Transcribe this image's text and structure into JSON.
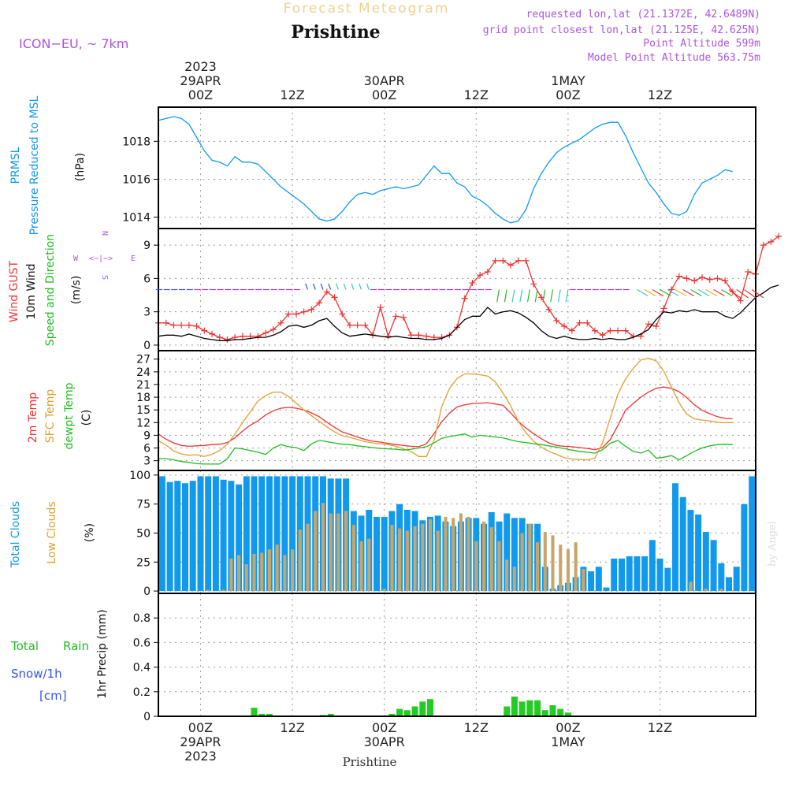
{
  "header": {
    "top_title": "Forecast Meteogram",
    "station": "Prishtine",
    "model": "ICON−EU, ~ 7km",
    "info_lines": [
      "requested lon,lat (21.1372E, 42.6489N)",
      "grid point closest lon,lat (21.125E, 42.625N)",
      "Point Altitude 599m",
      "Model Point Altitude 563.75m"
    ]
  },
  "time_axis": {
    "top_labels": [
      {
        "h": 0,
        "lines": [
          "2023",
          "29APR",
          "00Z"
        ]
      },
      {
        "h": 12,
        "lines": [
          "12Z"
        ]
      },
      {
        "h": 24,
        "lines": [
          "30APR",
          "00Z"
        ]
      },
      {
        "h": 36,
        "lines": [
          "12Z"
        ]
      },
      {
        "h": 48,
        "lines": [
          "1MAY",
          "00Z"
        ]
      },
      {
        "h": 60,
        "lines": [
          "12Z"
        ]
      }
    ],
    "bottom_labels": [
      {
        "h": 0,
        "lines": [
          "00Z",
          "29APR",
          "2023"
        ]
      },
      {
        "h": 12,
        "lines": [
          "12Z"
        ]
      },
      {
        "h": 24,
        "lines": [
          "00Z",
          "30APR"
        ]
      },
      {
        "h": 36,
        "lines": [
          "12Z"
        ]
      },
      {
        "h": 48,
        "lines": [
          "00Z",
          "1MAY"
        ]
      },
      {
        "h": 60,
        "lines": [
          "12Z"
        ]
      }
    ],
    "footer": "Prishtine"
  },
  "watermark": "by Angel",
  "chart_data": [
    {
      "type": "line",
      "panel": "pressure",
      "ylabel_lines": [
        "PRMSL",
        "Pressure Reduced to MSL"
      ],
      "unit": "(hPa)",
      "ylim": [
        1013.4,
        1019.8
      ],
      "yticks": [
        1014,
        1016,
        1018
      ],
      "x_start": -5.5,
      "x_step": 1,
      "series": [
        {
          "color": "#1199ee",
          "values": [
            1019.1,
            1019.2,
            1019.3,
            1019.2,
            1018.9,
            1018.2,
            1017.5,
            1017.0,
            1016.9,
            1016.7,
            1017.2,
            1016.9,
            1016.9,
            1016.8,
            1016.4,
            1016.0,
            1015.6,
            1015.3,
            1015.0,
            1014.7,
            1014.3,
            1013.9,
            1013.8,
            1013.9,
            1014.3,
            1014.8,
            1015.2,
            1015.3,
            1015.2,
            1015.4,
            1015.5,
            1015.6,
            1015.5,
            1015.6,
            1015.7,
            1016.2,
            1016.7,
            1016.3,
            1016.3,
            1015.8,
            1015.6,
            1015.1,
            1014.9,
            1014.6,
            1014.2,
            1013.9,
            1013.7,
            1013.8,
            1014.4,
            1015.5,
            1016.3,
            1016.9,
            1017.4,
            1017.7,
            1017.9,
            1018.1,
            1018.4,
            1018.7,
            1018.9,
            1019.0,
            1019.0,
            1018.3,
            1017.4,
            1016.6,
            1015.8,
            1015.3,
            1014.7,
            1014.2,
            1014.1,
            1014.3,
            1015.2,
            1015.8,
            1016.0,
            1016.2,
            1016.5,
            1016.4
          ]
        }
      ]
    },
    {
      "type": "line",
      "panel": "wind",
      "ylabel_lines": [
        "Wind GUST",
        "10m Wind",
        "Speed and Direction"
      ],
      "ylabel_colors": [
        "#ee3333",
        "#000000",
        "#22bb22"
      ],
      "unit": "(m/s)",
      "compass": {
        "n": "N",
        "s": "S",
        "w": "W",
        "e": "E",
        "cross": "<−|−>"
      },
      "ylim": [
        -0.5,
        10.5
      ],
      "yticks": [
        0,
        3,
        6,
        9
      ],
      "x_start": -5.5,
      "x_step": 1,
      "series": [
        {
          "name": "Wind GUST",
          "color": "#ee3333",
          "marker": "+",
          "values": [
            2.0,
            2.0,
            1.8,
            1.8,
            1.8,
            1.7,
            1.3,
            1.0,
            0.7,
            0.5,
            0.7,
            0.8,
            0.8,
            0.8,
            1.1,
            1.4,
            2.0,
            2.8,
            2.8,
            3.0,
            3.2,
            3.8,
            4.8,
            4.3,
            2.8,
            1.8,
            1.8,
            1.8,
            0.9,
            3.4,
            0.8,
            2.6,
            2.5,
            0.9,
            0.9,
            0.8,
            0.7,
            0.7,
            0.9,
            1.6,
            4.2,
            5.6,
            6.3,
            6.6,
            7.6,
            7.6,
            7.2,
            7.6,
            7.6,
            5.5,
            4.3,
            3.2,
            2.2,
            1.7,
            1.3,
            2.0,
            2.0,
            1.3,
            0.9,
            1.3,
            1.3,
            1.3,
            0.8,
            0.8,
            1.9,
            1.7,
            3.3,
            5.0,
            6.2,
            6.0,
            5.8,
            6.1,
            5.9,
            6.0,
            5.8,
            4.8,
            4.0,
            6.6,
            6.4,
            9.0,
            9.3,
            9.8
          ]
        },
        {
          "name": "10m Wind",
          "color": "#000000",
          "values": [
            0.8,
            0.9,
            0.9,
            0.8,
            1.0,
            0.8,
            0.6,
            0.5,
            0.4,
            0.4,
            0.5,
            0.5,
            0.6,
            0.7,
            0.7,
            0.9,
            1.2,
            1.7,
            1.8,
            1.6,
            1.8,
            2.2,
            2.4,
            1.7,
            1.1,
            0.8,
            0.9,
            1.0,
            0.9,
            0.8,
            0.7,
            0.8,
            0.7,
            0.6,
            0.6,
            0.5,
            0.5,
            0.6,
            0.9,
            1.6,
            2.3,
            2.6,
            2.6,
            3.4,
            2.8,
            3.0,
            3.1,
            2.9,
            2.5,
            2.0,
            1.3,
            0.8,
            0.6,
            0.8,
            0.6,
            0.5,
            0.5,
            0.6,
            0.5,
            0.6,
            0.5,
            0.5,
            0.7,
            1.0,
            1.4,
            2.3,
            3.0,
            2.9,
            3.1,
            3.0,
            3.2,
            3.0,
            3.0,
            3.0,
            2.6,
            2.4,
            2.9,
            3.6,
            4.3,
            4.7,
            5.2,
            5.4
          ]
        }
      ]
    },
    {
      "type": "line",
      "panel": "temperature",
      "ylabel_lines": [
        "2m Temp",
        "SFC Temp",
        "dewpt Temp"
      ],
      "ylabel_colors": [
        "#ee3333",
        "#e0a030",
        "#22bb22"
      ],
      "unit": "(C)",
      "ylim": [
        0.7,
        29.0
      ],
      "yticks": [
        3,
        6,
        9,
        12,
        15,
        18,
        21,
        24,
        27
      ],
      "x_start": -5.5,
      "x_step": 1,
      "series": [
        {
          "name": "2m Temp",
          "color": "#ee3333",
          "values": [
            9.3,
            8.1,
            7.2,
            6.6,
            6.4,
            6.5,
            6.6,
            6.8,
            6.9,
            7.3,
            8.4,
            10.0,
            11.4,
            12.4,
            13.8,
            14.8,
            15.4,
            15.6,
            15.4,
            15.0,
            14.3,
            13.4,
            12.1,
            10.9,
            9.8,
            9.2,
            8.6,
            8.0,
            7.6,
            7.4,
            7.1,
            6.8,
            6.6,
            6.4,
            6.3,
            7.0,
            9.4,
            12.2,
            14.2,
            15.7,
            16.2,
            16.5,
            16.6,
            16.7,
            16.4,
            16.1,
            14.3,
            12.3,
            10.7,
            9.4,
            8.2,
            7.2,
            6.6,
            6.4,
            6.3,
            6.1,
            5.9,
            5.6,
            6.1,
            8.0,
            11.3,
            14.9,
            16.5,
            18.0,
            19.2,
            20.1,
            20.4,
            20.1,
            19.3,
            17.9,
            16.2,
            14.9,
            14.1,
            13.4,
            13.0,
            12.9
          ]
        },
        {
          "name": "SFC Temp",
          "color": "#e0a030",
          "values": [
            7.7,
            6.7,
            5.3,
            4.6,
            4.3,
            4.4,
            4.0,
            4.5,
            5.4,
            6.9,
            9.3,
            12.0,
            14.5,
            17.1,
            18.4,
            19.2,
            19.2,
            18.2,
            16.6,
            15.0,
            13.6,
            12.3,
            11.0,
            9.8,
            8.9,
            8.5,
            8.0,
            7.5,
            7.2,
            7.0,
            6.8,
            6.4,
            5.8,
            5.2,
            4.0,
            4.0,
            7.8,
            15.8,
            20.0,
            22.4,
            23.5,
            23.5,
            23.3,
            23.0,
            21.6,
            19.0,
            16.0,
            12.3,
            9.6,
            7.6,
            6.2,
            5.2,
            4.5,
            3.7,
            3.4,
            3.3,
            3.2,
            3.6,
            7.2,
            13.0,
            18.7,
            22.3,
            24.8,
            26.8,
            27.2,
            26.6,
            24.2,
            20.4,
            16.7,
            14.0,
            12.9,
            12.6,
            12.4,
            12.1,
            12.0,
            12.0
          ]
        },
        {
          "name": "dewpt Temp",
          "color": "#22bb22",
          "values": [
            3.5,
            3.5,
            3.2,
            2.8,
            2.6,
            2.3,
            2.2,
            2.2,
            2.2,
            3.5,
            6.0,
            5.8,
            5.4,
            5.0,
            4.5,
            6.0,
            6.8,
            6.3,
            6.1,
            5.4,
            7.0,
            7.8,
            7.5,
            7.2,
            6.9,
            6.8,
            6.5,
            6.3,
            6.1,
            5.9,
            5.8,
            5.7,
            5.5,
            5.7,
            6.0,
            6.3,
            7.2,
            8.3,
            8.7,
            9.0,
            9.3,
            8.6,
            9.0,
            8.8,
            8.6,
            8.4,
            7.9,
            7.5,
            7.3,
            7.0,
            6.8,
            6.5,
            6.2,
            5.9,
            5.5,
            5.2,
            5.0,
            4.8,
            5.6,
            7.1,
            7.8,
            6.4,
            5.2,
            4.8,
            5.5,
            3.6,
            3.8,
            4.2,
            3.2,
            4.2,
            5.2,
            6.0,
            6.5,
            6.8,
            6.9,
            6.8
          ]
        }
      ]
    },
    {
      "type": "bar",
      "panel": "clouds",
      "ylabel_lines": [
        "Total Clouds",
        "Low Clouds"
      ],
      "ylabel_colors": [
        "#1199ee",
        "#e0a030"
      ],
      "unit": "(%)",
      "ylim": [
        -2,
        104
      ],
      "yticks": [
        0,
        25,
        50,
        75,
        100
      ],
      "x_start": -5,
      "x_step": 1,
      "series": [
        {
          "name": "Total Clouds",
          "color": "#1199ee",
          "values": [
            99,
            94,
            95,
            93,
            95,
            99,
            99,
            99,
            96,
            95,
            92,
            99,
            99,
            99,
            99,
            99,
            99,
            99,
            99,
            99,
            99,
            99,
            97,
            97,
            97,
            69,
            65,
            70,
            64,
            64,
            69,
            75,
            70,
            69,
            61,
            64,
            65,
            60,
            56,
            60,
            63,
            63,
            58,
            68,
            60,
            67,
            63,
            63,
            58,
            58,
            21,
            2,
            5,
            7,
            12,
            21,
            17,
            21,
            3,
            28,
            28,
            30,
            30,
            30,
            44,
            28,
            20,
            93,
            81,
            70,
            66,
            51,
            44,
            24,
            12,
            21,
            75,
            99,
            99,
            99,
            99,
            99,
            99,
            99,
            99,
            99,
            99,
            99
          ]
        },
        {
          "name": "Low Clouds",
          "color": "#c9a56a",
          "values": [
            0,
            0,
            0,
            0,
            0,
            0,
            1,
            0,
            1,
            28,
            31,
            23,
            32,
            33,
            36,
            40,
            31,
            36,
            53,
            58,
            69,
            76,
            67,
            67,
            69,
            57,
            43,
            45,
            0,
            2,
            57,
            54,
            52,
            56,
            58,
            62,
            52,
            64,
            63,
            67,
            64,
            43,
            60,
            55,
            43,
            27,
            21,
            50,
            58,
            42,
            51,
            48,
            40,
            36,
            42,
            19,
            0,
            0,
            0,
            0,
            0,
            0,
            0,
            0,
            0,
            0,
            0,
            0,
            0,
            8,
            0,
            2,
            0,
            2,
            0,
            0,
            0,
            0,
            28,
            29,
            28,
            30,
            30,
            30,
            44,
            23,
            0,
            21,
            33,
            57,
            63,
            47,
            42,
            10,
            0,
            0,
            0,
            0,
            0,
            0,
            0,
            0,
            0,
            0,
            0,
            0,
            0,
            0,
            0
          ]
        }
      ]
    },
    {
      "type": "bar",
      "panel": "precip",
      "ylabel_lines": [
        "Total",
        "Rain"
      ],
      "ylabel_colors": [
        "#22bb22",
        "#22bb22"
      ],
      "snow_label": "Snow/1h",
      "snow_unit": "[cm]",
      "unit": "1hr Precip (mm)",
      "ylim": [
        0,
        1.0
      ],
      "yticks": [
        0,
        0.2,
        0.4,
        0.6,
        0.8
      ],
      "ytick_labels": [
        "0",
        "0.2",
        "0.4",
        "0.6",
        "0.8"
      ],
      "x_start": -5,
      "x_step": 1,
      "series": [
        {
          "name": "Total Rain",
          "color": "#22cc22",
          "values": [
            0,
            0,
            0,
            0,
            0,
            0,
            0,
            0,
            0,
            0,
            0,
            0,
            0.07,
            0.02,
            0.02,
            0,
            0,
            0,
            0,
            0,
            0,
            0.01,
            0.02,
            0,
            0,
            0,
            0,
            0,
            0,
            0,
            0.02,
            0.06,
            0.05,
            0.08,
            0.12,
            0.14,
            0,
            0,
            0,
            0,
            0,
            0,
            0,
            0,
            0,
            0.08,
            0.16,
            0.12,
            0.13,
            0.13,
            0.05,
            0.09,
            0.06,
            0.03,
            0,
            0,
            0,
            0,
            0,
            0,
            0,
            0,
            0,
            0,
            0,
            0,
            0,
            0,
            0,
            0,
            0,
            0,
            0,
            0,
            0,
            0,
            0,
            0,
            0,
            0,
            0,
            0,
            0,
            0,
            0,
            0,
            0,
            0,
            0,
            0,
            0,
            0,
            0,
            0,
            0,
            0,
            0,
            0,
            0,
            0,
            0,
            0,
            0,
            0,
            0,
            0,
            0
          ]
        }
      ]
    }
  ]
}
